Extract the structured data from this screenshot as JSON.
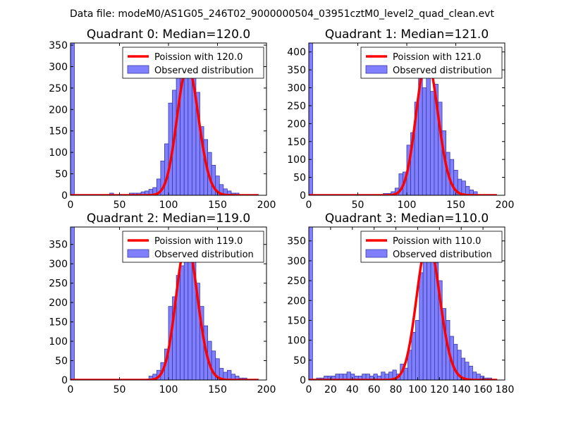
{
  "figure": {
    "suptitle": "Data file: modeM0/AS1G05_246T02_9000000504_03951cztM0_level2_quad_clean.evt"
  },
  "colors": {
    "hist_fill": "#8080ff",
    "hist_edge": "#3838a8",
    "poisson_line": "#ff0000",
    "frame": "#000000"
  },
  "legend_labels": {
    "observed": "Observed distribution"
  },
  "chart_data": [
    {
      "type": "bar",
      "title": "Quadrant 0: Median=120.0",
      "median": 120.0,
      "legend_line": "Poission with 120.0",
      "xlim": [
        0,
        200
      ],
      "ylim": [
        0,
        355
      ],
      "xticks": [
        0,
        50,
        100,
        150,
        200
      ],
      "yticks": [
        0,
        50,
        100,
        150,
        200,
        250,
        300,
        350
      ],
      "bin_width": 4,
      "bins": [
        {
          "x": 0,
          "v": 355
        },
        {
          "x": 40,
          "v": 5
        },
        {
          "x": 60,
          "v": 5
        },
        {
          "x": 64,
          "v": 5
        },
        {
          "x": 68,
          "v": 5
        },
        {
          "x": 72,
          "v": 8
        },
        {
          "x": 76,
          "v": 10
        },
        {
          "x": 80,
          "v": 14
        },
        {
          "x": 84,
          "v": 18
        },
        {
          "x": 88,
          "v": 38
        },
        {
          "x": 92,
          "v": 80
        },
        {
          "x": 96,
          "v": 120
        },
        {
          "x": 100,
          "v": 215
        },
        {
          "x": 104,
          "v": 245
        },
        {
          "x": 108,
          "v": 300
        },
        {
          "x": 112,
          "v": 290
        },
        {
          "x": 116,
          "v": 290
        },
        {
          "x": 120,
          "v": 280
        },
        {
          "x": 124,
          "v": 280
        },
        {
          "x": 128,
          "v": 240
        },
        {
          "x": 132,
          "v": 160
        },
        {
          "x": 136,
          "v": 130
        },
        {
          "x": 140,
          "v": 100
        },
        {
          "x": 144,
          "v": 70
        },
        {
          "x": 148,
          "v": 45
        },
        {
          "x": 152,
          "v": 25
        },
        {
          "x": 156,
          "v": 15
        },
        {
          "x": 160,
          "v": 10
        },
        {
          "x": 164,
          "v": 5
        },
        {
          "x": 168,
          "v": 5
        }
      ]
    },
    {
      "type": "bar",
      "title": "Quadrant 1: Median=121.0",
      "median": 121.0,
      "legend_line": "Poission with 121.0",
      "xlim": [
        0,
        200
      ],
      "ylim": [
        0,
        425
      ],
      "xticks": [
        0,
        50,
        100,
        150,
        200
      ],
      "yticks": [
        0,
        50,
        100,
        150,
        200,
        250,
        300,
        350,
        400
      ],
      "bin_width": 4,
      "bins": [
        {
          "x": 0,
          "v": 425
        },
        {
          "x": 76,
          "v": 5
        },
        {
          "x": 80,
          "v": 5
        },
        {
          "x": 84,
          "v": 10
        },
        {
          "x": 88,
          "v": 20
        },
        {
          "x": 92,
          "v": 60
        },
        {
          "x": 96,
          "v": 65
        },
        {
          "x": 100,
          "v": 140
        },
        {
          "x": 104,
          "v": 175
        },
        {
          "x": 108,
          "v": 260
        },
        {
          "x": 112,
          "v": 380
        },
        {
          "x": 116,
          "v": 300
        },
        {
          "x": 120,
          "v": 330
        },
        {
          "x": 124,
          "v": 290
        },
        {
          "x": 128,
          "v": 310
        },
        {
          "x": 132,
          "v": 260
        },
        {
          "x": 136,
          "v": 180
        },
        {
          "x": 140,
          "v": 120
        },
        {
          "x": 144,
          "v": 100
        },
        {
          "x": 148,
          "v": 70
        },
        {
          "x": 152,
          "v": 45
        },
        {
          "x": 156,
          "v": 40
        },
        {
          "x": 160,
          "v": 25
        },
        {
          "x": 164,
          "v": 15
        },
        {
          "x": 168,
          "v": 10
        }
      ]
    },
    {
      "type": "bar",
      "title": "Quadrant 2: Median=119.0",
      "median": 119.0,
      "legend_line": "Poission with 119.0",
      "xlim": [
        0,
        200
      ],
      "ylim": [
        0,
        395
      ],
      "xticks": [
        0,
        50,
        100,
        150,
        200
      ],
      "yticks": [
        0,
        50,
        100,
        150,
        200,
        250,
        300,
        350
      ],
      "bin_width": 4,
      "bins": [
        {
          "x": 0,
          "v": 395
        },
        {
          "x": 80,
          "v": 10
        },
        {
          "x": 84,
          "v": 15
        },
        {
          "x": 88,
          "v": 25
        },
        {
          "x": 92,
          "v": 45
        },
        {
          "x": 96,
          "v": 80
        },
        {
          "x": 100,
          "v": 190
        },
        {
          "x": 104,
          "v": 215
        },
        {
          "x": 108,
          "v": 270
        },
        {
          "x": 112,
          "v": 295
        },
        {
          "x": 116,
          "v": 340
        },
        {
          "x": 120,
          "v": 355
        },
        {
          "x": 124,
          "v": 325
        },
        {
          "x": 128,
          "v": 250
        },
        {
          "x": 132,
          "v": 190
        },
        {
          "x": 136,
          "v": 140
        },
        {
          "x": 140,
          "v": 100
        },
        {
          "x": 144,
          "v": 75
        },
        {
          "x": 148,
          "v": 55
        },
        {
          "x": 152,
          "v": 30
        },
        {
          "x": 156,
          "v": 20
        },
        {
          "x": 160,
          "v": 25
        },
        {
          "x": 164,
          "v": 15
        },
        {
          "x": 168,
          "v": 10
        },
        {
          "x": 172,
          "v": 5
        },
        {
          "x": 176,
          "v": 5
        }
      ]
    },
    {
      "type": "bar",
      "title": "Quadrant 3: Median=110.0",
      "median": 110.0,
      "legend_line": "Poission with 110.0",
      "xlim": [
        0,
        180
      ],
      "ylim": [
        0,
        385
      ],
      "xticks": [
        0,
        20,
        40,
        60,
        80,
        100,
        120,
        140,
        160,
        180
      ],
      "yticks": [
        0,
        50,
        100,
        150,
        200,
        250,
        300,
        350
      ],
      "bin_width": 3.5,
      "bins": [
        {
          "x": 0,
          "v": 385
        },
        {
          "x": 7,
          "v": 5
        },
        {
          "x": 10.5,
          "v": 5
        },
        {
          "x": 14,
          "v": 10
        },
        {
          "x": 17.5,
          "v": 10
        },
        {
          "x": 21,
          "v": 10
        },
        {
          "x": 24.5,
          "v": 15
        },
        {
          "x": 28,
          "v": 15
        },
        {
          "x": 31.5,
          "v": 15
        },
        {
          "x": 35,
          "v": 20
        },
        {
          "x": 38.5,
          "v": 15
        },
        {
          "x": 42,
          "v": 10
        },
        {
          "x": 45.5,
          "v": 10
        },
        {
          "x": 49,
          "v": 15
        },
        {
          "x": 52.5,
          "v": 15
        },
        {
          "x": 56,
          "v": 10
        },
        {
          "x": 59.5,
          "v": 15
        },
        {
          "x": 63,
          "v": 10
        },
        {
          "x": 66.5,
          "v": 20
        },
        {
          "x": 70,
          "v": 15
        },
        {
          "x": 73.5,
          "v": 20
        },
        {
          "x": 77,
          "v": 25
        },
        {
          "x": 80.5,
          "v": 15
        },
        {
          "x": 84,
          "v": 40
        },
        {
          "x": 87.5,
          "v": 30
        },
        {
          "x": 91,
          "v": 75
        },
        {
          "x": 94.5,
          "v": 120
        },
        {
          "x": 98,
          "v": 150
        },
        {
          "x": 101.5,
          "v": 270
        },
        {
          "x": 105,
          "v": 300
        },
        {
          "x": 108.5,
          "v": 350
        },
        {
          "x": 112,
          "v": 300
        },
        {
          "x": 115.5,
          "v": 295
        },
        {
          "x": 119,
          "v": 250
        },
        {
          "x": 122.5,
          "v": 180
        },
        {
          "x": 126,
          "v": 150
        },
        {
          "x": 129.5,
          "v": 110
        },
        {
          "x": 133,
          "v": 90
        },
        {
          "x": 136.5,
          "v": 75
        },
        {
          "x": 140,
          "v": 55
        },
        {
          "x": 143.5,
          "v": 45
        },
        {
          "x": 147,
          "v": 35
        },
        {
          "x": 150.5,
          "v": 20
        },
        {
          "x": 154,
          "v": 15
        },
        {
          "x": 157.5,
          "v": 10
        },
        {
          "x": 161,
          "v": 5
        },
        {
          "x": 164.5,
          "v": 5
        }
      ]
    }
  ]
}
